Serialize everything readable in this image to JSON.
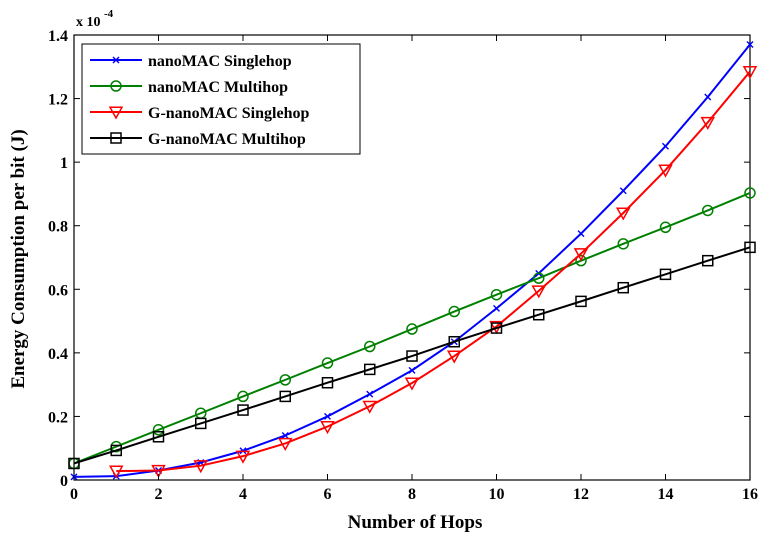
{
  "chart_data": {
    "type": "line",
    "title": "",
    "xlabel": "Number of Hops",
    "ylabel": "Energy Consumption per bit (J)",
    "y_multiplier_base": "x 10",
    "y_multiplier_exp": "-4",
    "xlim": [
      0,
      16
    ],
    "ylim": [
      0,
      1.4
    ],
    "xticks": [
      0,
      2,
      4,
      6,
      8,
      10,
      12,
      14,
      16
    ],
    "yticks": [
      0,
      0.2,
      0.4,
      0.6,
      0.8,
      1,
      1.2,
      1.4
    ],
    "xtick_labels": [
      "0",
      "2",
      "4",
      "6",
      "8",
      "10",
      "12",
      "14",
      "16"
    ],
    "ytick_labels": [
      "0",
      "0.2",
      "0.4",
      "0.6",
      "0.8",
      "1",
      "1.2",
      "1.4"
    ],
    "grid": false,
    "legend_position": "top-left",
    "series": [
      {
        "name": "nanoMAC Singlehop",
        "color": "#0000ff",
        "marker": "x",
        "x": [
          0,
          1,
          2,
          3,
          4,
          5,
          6,
          7,
          8,
          9,
          10,
          11,
          12,
          13,
          14,
          15,
          16
        ],
        "y": [
          0.01,
          0.012,
          0.03,
          0.055,
          0.092,
          0.14,
          0.2,
          0.27,
          0.345,
          0.435,
          0.54,
          0.65,
          0.775,
          0.91,
          1.05,
          1.205,
          1.37
        ]
      },
      {
        "name": "nanoMAC Multihop",
        "color": "#008000",
        "marker": "circle",
        "x": [
          0,
          1,
          2,
          3,
          4,
          5,
          6,
          7,
          8,
          9,
          10,
          11,
          12,
          13,
          14,
          15,
          16
        ],
        "y": [
          0.052,
          0.105,
          0.158,
          0.21,
          0.263,
          0.315,
          0.368,
          0.42,
          0.475,
          0.53,
          0.583,
          0.635,
          0.69,
          0.743,
          0.795,
          0.848,
          0.903
        ]
      },
      {
        "name": "G-nanoMAC Singlehop",
        "color": "#ff0000",
        "marker": "triangle-down",
        "x": [
          1,
          2,
          3,
          4,
          5,
          6,
          7,
          8,
          9,
          10,
          11,
          12,
          13,
          14,
          15,
          16
        ],
        "y": [
          0.028,
          0.03,
          0.045,
          0.075,
          0.115,
          0.168,
          0.232,
          0.305,
          0.39,
          0.483,
          0.595,
          0.712,
          0.84,
          0.975,
          1.125,
          1.285
        ]
      },
      {
        "name": "G-nanoMAC Multihop",
        "color": "#000000",
        "marker": "square",
        "x": [
          0,
          1,
          2,
          3,
          4,
          5,
          6,
          7,
          8,
          9,
          10,
          11,
          12,
          13,
          14,
          15,
          16
        ],
        "y": [
          0.052,
          0.093,
          0.136,
          0.178,
          0.22,
          0.263,
          0.306,
          0.348,
          0.39,
          0.435,
          0.478,
          0.52,
          0.562,
          0.605,
          0.647,
          0.69,
          0.732
        ]
      }
    ]
  }
}
